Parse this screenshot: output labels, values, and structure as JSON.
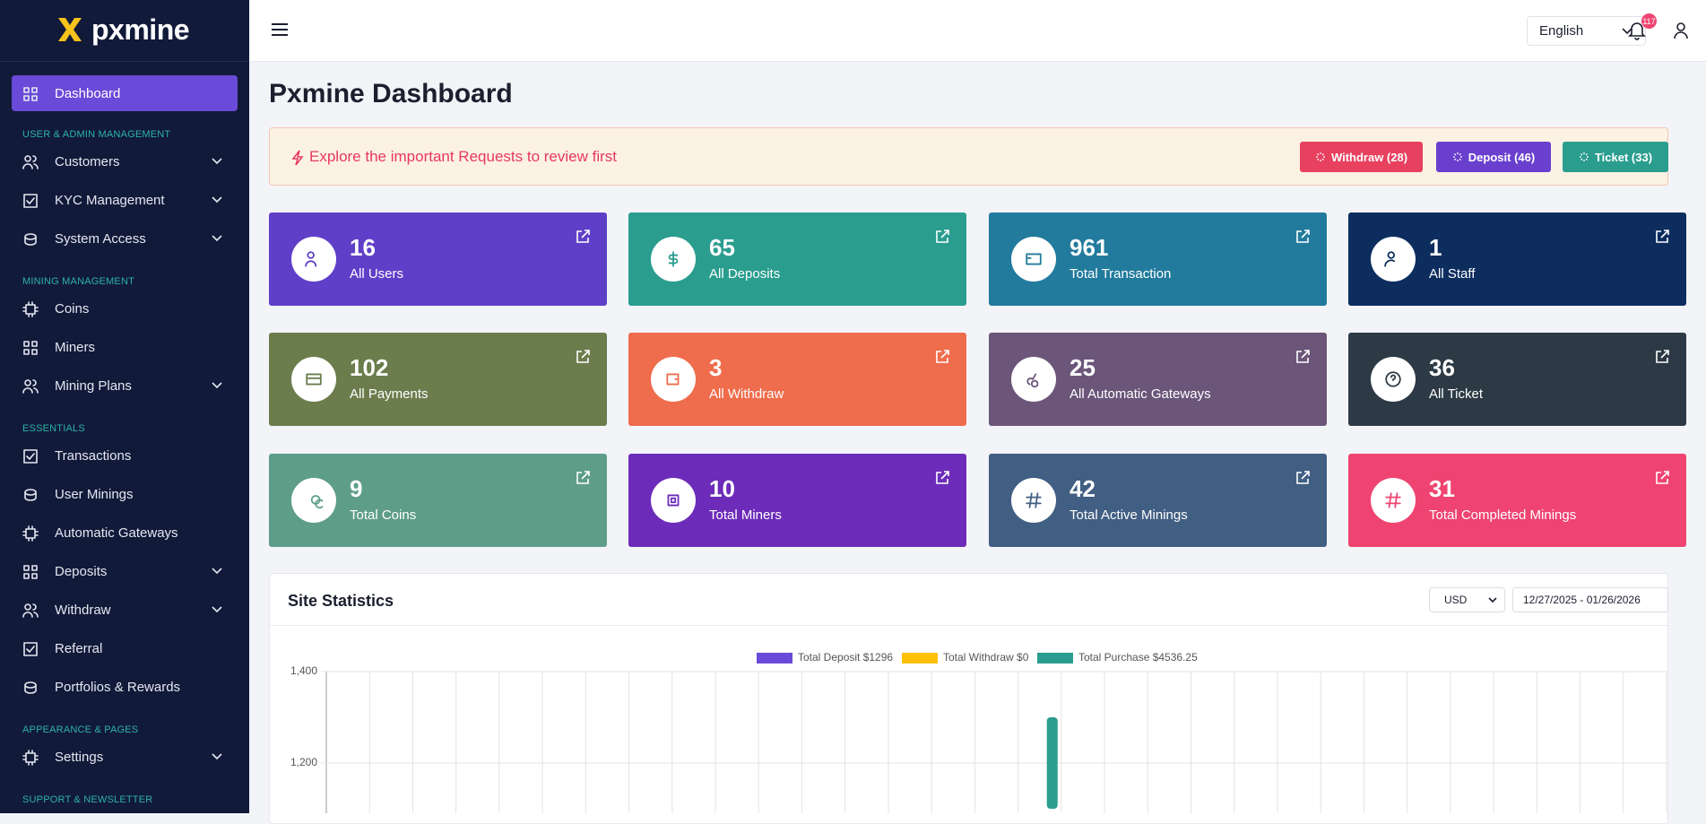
{
  "sidebar": {
    "brand": "pxmine",
    "sections": [
      {
        "items": [
          {
            "label": "Dashboard",
            "active": true,
            "submenu": false
          }
        ]
      },
      {
        "label": "USER & ADMIN MANAGEMENT",
        "items": [
          {
            "label": "Customers",
            "submenu": true
          },
          {
            "label": "KYC Management",
            "submenu": true
          },
          {
            "label": "System Access",
            "submenu": true
          }
        ]
      },
      {
        "label": "MINING MANAGEMENT",
        "items": [
          {
            "label": "Coins",
            "submenu": false
          },
          {
            "label": "Miners",
            "submenu": false
          },
          {
            "label": "Mining Plans",
            "submenu": true
          }
        ]
      },
      {
        "label": "ESSENTIALS",
        "items": [
          {
            "label": "Transactions",
            "submenu": false
          },
          {
            "label": "User Minings",
            "submenu": false
          },
          {
            "label": "Automatic Gateways",
            "submenu": false
          },
          {
            "label": "Deposits",
            "submenu": true
          },
          {
            "label": "Withdraw",
            "submenu": true
          },
          {
            "label": "Referral",
            "submenu": false
          },
          {
            "label": "Portfolios & Rewards",
            "submenu": false
          }
        ]
      },
      {
        "label": "APPEARANCE & PAGES",
        "items": [
          {
            "label": "Settings",
            "submenu": true
          }
        ]
      },
      {
        "label": "SUPPORT & NEWSLETTER",
        "items": []
      }
    ]
  },
  "header": {
    "language": "English",
    "notifications": "117"
  },
  "main": {
    "title": "Pxmine Dashboard",
    "alert": {
      "text": "Explore the important Requests to review first",
      "buttons": [
        {
          "label": "Withdraw (28)",
          "color": "#e8405f"
        },
        {
          "label": "Deposit (46)",
          "color": "#6a3fce"
        },
        {
          "label": "Ticket (33)",
          "color": "#2a9d8f"
        }
      ]
    },
    "stats": [
      {
        "value": 16,
        "label": "All Users",
        "color": "#5f3fc8"
      },
      {
        "value": 65,
        "label": "All Deposits",
        "color": "#2a9d8f"
      },
      {
        "value": 961,
        "label": "Total Transaction",
        "color": "#227b9d"
      },
      {
        "value": 1,
        "label": "All Staff",
        "color": "#0c2d5e"
      },
      {
        "value": 102,
        "label": "All Payments",
        "color": "#6b7d4d"
      },
      {
        "value": 3,
        "label": "All Withdraw",
        "color": "#ef6c4c"
      },
      {
        "value": 25,
        "label": "All Automatic Gateways",
        "color": "#6b5579"
      },
      {
        "value": 36,
        "label": "All Ticket",
        "color": "#2d3a45"
      },
      {
        "value": 9,
        "label": "Total Coins",
        "color": "#5e9d88"
      },
      {
        "value": 10,
        "label": "Total Miners",
        "color": "#6c2cb9"
      },
      {
        "value": 42,
        "label": "Total Active Minings",
        "color": "#415e83"
      },
      {
        "value": 31,
        "label": "Total Completed Minings",
        "color": "#ef4471"
      }
    ]
  },
  "statistics": {
    "title": "Site Statistics",
    "currency": "USD",
    "date_range": "12/27/2025 - 01/26/2026",
    "chart_data": {
      "type": "bar",
      "categories": [
        null,
        null,
        null,
        null,
        null,
        null,
        null,
        null,
        null,
        null,
        null,
        null,
        null,
        null,
        null,
        null,
        null,
        null,
        null,
        null,
        null,
        null,
        null,
        null,
        null,
        null,
        null,
        null,
        null,
        null,
        null
      ],
      "series": [
        {
          "name": "Total Deposit $1296",
          "color": "#6a4ad8",
          "values": [
            null,
            null,
            null,
            null,
            null,
            null,
            null,
            null,
            null,
            null,
            null,
            null,
            null,
            null,
            null,
            null,
            null,
            null,
            null,
            null,
            null,
            null,
            null,
            null,
            null,
            null,
            null,
            null,
            null,
            null,
            null
          ]
        },
        {
          "name": "Total Withdraw $0",
          "color": "#ffc107",
          "values": [
            null,
            null,
            null,
            null,
            null,
            null,
            null,
            null,
            null,
            null,
            null,
            null,
            null,
            null,
            null,
            null,
            null,
            null,
            null,
            null,
            null,
            null,
            null,
            null,
            null,
            null,
            null,
            null,
            null,
            null,
            null
          ]
        },
        {
          "name": "Total Purchase $4536.25",
          "color": "#2a9d8f",
          "values": [
            null,
            null,
            null,
            null,
            null,
            null,
            null,
            null,
            null,
            null,
            null,
            null,
            null,
            null,
            null,
            null,
            1300,
            null,
            null,
            null,
            null,
            null,
            null,
            null,
            null,
            null,
            null,
            null,
            null,
            null,
            null
          ]
        }
      ],
      "ylim": [
        1100,
        1400
      ],
      "yticks": [
        {
          "value": 1400,
          "label": "1,400"
        },
        {
          "value": 1200,
          "label": "1,200"
        }
      ],
      "grid": true
    }
  }
}
